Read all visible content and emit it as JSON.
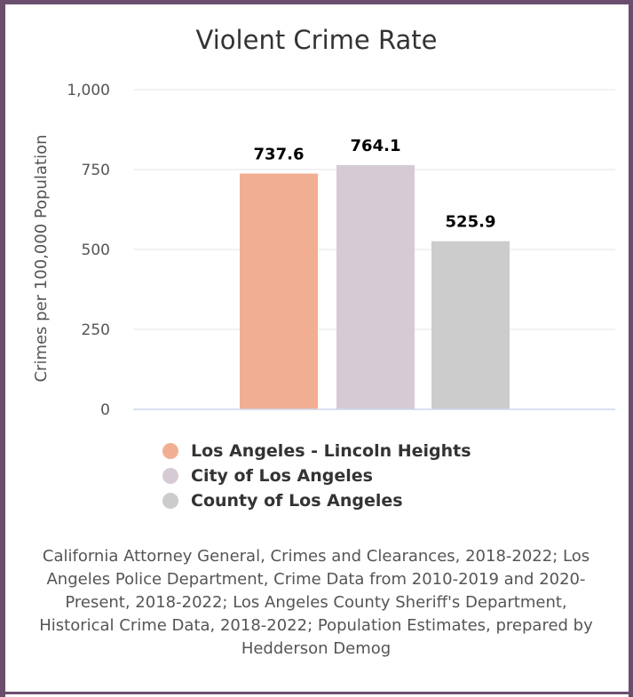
{
  "chart_data": {
    "type": "bar",
    "title": "Violent Crime Rate",
    "ylabel": "Crimes per 100,000 Population",
    "xlabel": "",
    "ylim": [
      0,
      1000
    ],
    "yticks": [
      0,
      250,
      500,
      750,
      1000
    ],
    "ytick_labels": [
      "0",
      "250",
      "500",
      "750",
      "1,000"
    ],
    "grid": true,
    "legend_position": "bottom",
    "categories": [
      "Los Angeles - Lincoln Heights",
      "City of Los Angeles",
      "County of Los Angeles"
    ],
    "values": [
      737.6,
      764.1,
      525.9
    ],
    "value_labels": [
      "737.6",
      "764.1",
      "525.9"
    ],
    "colors": [
      "#f2ae92",
      "#d6cbd4",
      "#cccccc"
    ]
  },
  "legend": {
    "items": [
      {
        "label": "Los Angeles - Lincoln Heights",
        "color": "#f2ae92"
      },
      {
        "label": "City of Los Angeles",
        "color": "#d6cbd4"
      },
      {
        "label": "County of Los Angeles",
        "color": "#cccccc"
      }
    ]
  },
  "source": "California Attorney General, Crimes and Clearances, 2018-2022; Los Angeles Police Department, Crime Data from 2010-2019 and 2020-Present, 2018-2022; Los Angeles County Sheriff's Department, Historical Crime Data, 2018-2022; Population Estimates, prepared by Hedderson Demog",
  "colors": {
    "frame": "#6b4e6e"
  }
}
